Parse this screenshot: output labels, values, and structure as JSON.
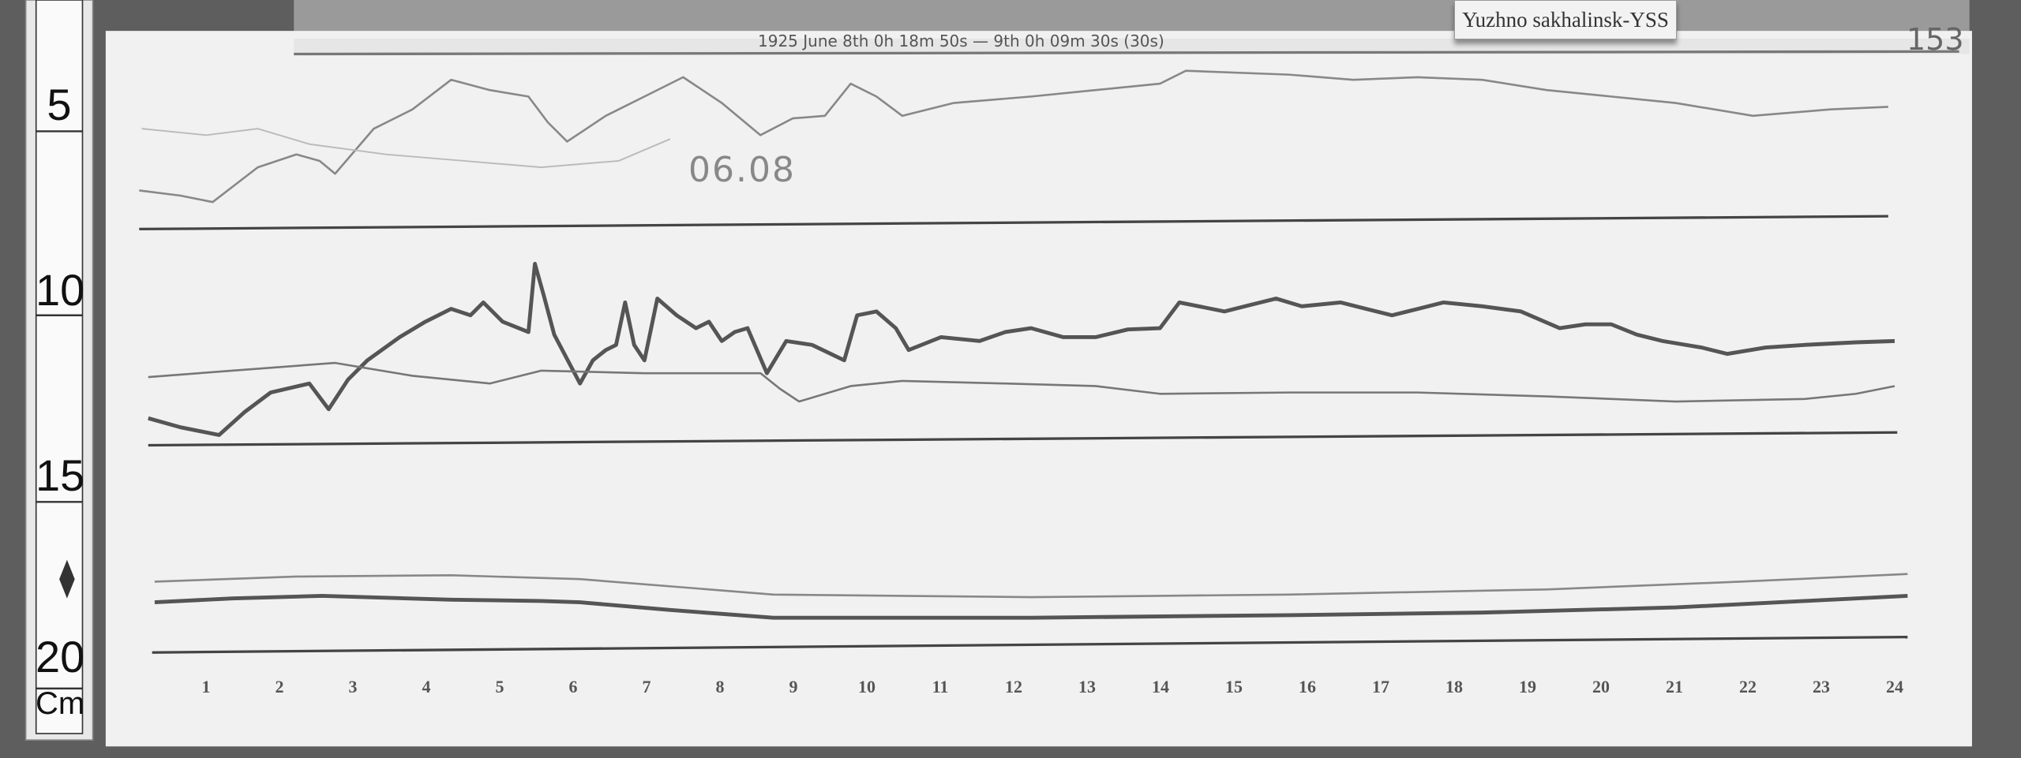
{
  "station_label": "Yuzhno sakhalinsk-YSS",
  "record_header": "1925 June 8th 0h 18m 50s — 9th 0h 09m 30s (30s)",
  "date_note": "06.08",
  "sheet_number": "153",
  "ruler": {
    "marks": [
      "5",
      "10",
      "15",
      "20"
    ],
    "unit": "Cm"
  },
  "hours": [
    "1",
    "2",
    "3",
    "4",
    "5",
    "6",
    "7",
    "8",
    "9",
    "10",
    "11",
    "12",
    "13",
    "14",
    "15",
    "16",
    "17",
    "18",
    "19",
    "20",
    "21",
    "22",
    "23",
    "24"
  ],
  "colors": {
    "background": "#5e5e5e",
    "paper": "#f1f1f1",
    "trace": "#555555"
  }
}
